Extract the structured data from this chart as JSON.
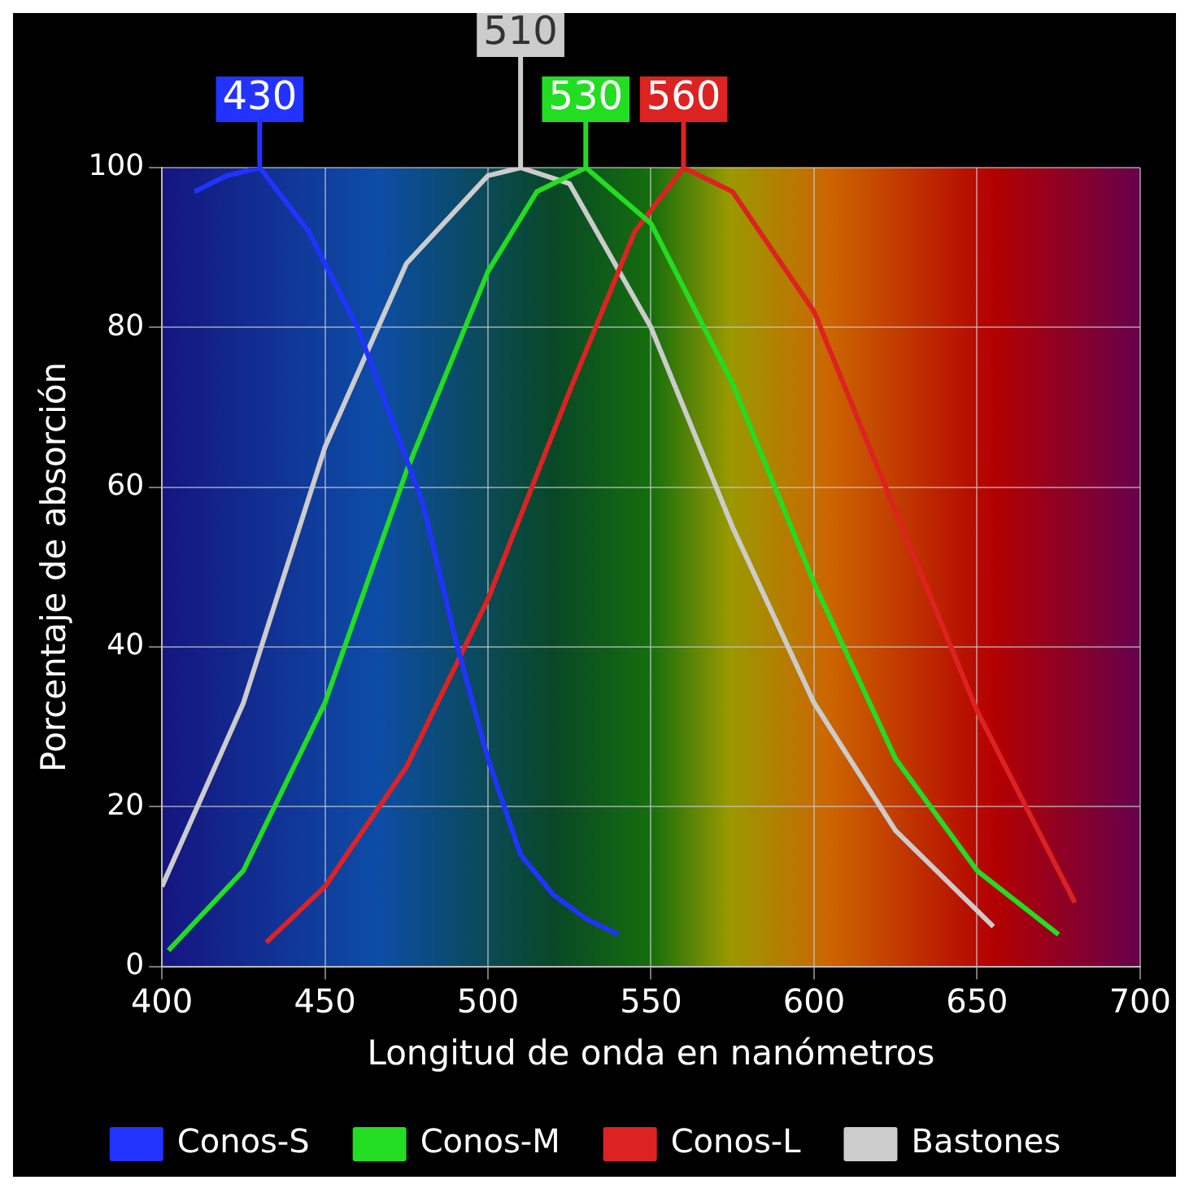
{
  "chart_data": {
    "type": "line",
    "xlabel": "Longitud de onda en nanómetros",
    "ylabel": "Porcentaje de absorción",
    "xlim": [
      400,
      700
    ],
    "xticks": [
      400,
      450,
      500,
      550,
      600,
      650,
      700
    ],
    "ylim": [
      0,
      100
    ],
    "yticks": [
      0,
      20,
      40,
      60,
      80,
      100
    ],
    "grid": true,
    "legend": "bottom",
    "marker": "none",
    "line_style": "solid",
    "series": [
      {
        "name": "Conos-S",
        "color": "#2233ff",
        "x": [
          410,
          420,
          430,
          445,
          460,
          470,
          480,
          490,
          500,
          510,
          520,
          530,
          540
        ],
        "values": [
          97,
          99,
          100,
          92,
          80,
          69,
          58,
          41,
          26,
          14,
          9,
          6,
          4
        ]
      },
      {
        "name": "Conos-M",
        "color": "#22dd22",
        "x": [
          402,
          425,
          450,
          475,
          500,
          515,
          530,
          550,
          575,
          600,
          625,
          650,
          675
        ],
        "values": [
          2,
          12,
          33,
          62,
          87,
          97,
          100,
          93,
          73,
          48,
          26,
          12,
          4
        ]
      },
      {
        "name": "Conos-L",
        "color": "#dd2222",
        "x": [
          432,
          450,
          475,
          500,
          525,
          545,
          560,
          575,
          600,
          625,
          650,
          665,
          680
        ],
        "values": [
          3,
          10,
          25,
          46,
          72,
          92,
          100,
          97,
          82,
          57,
          32,
          20,
          8
        ]
      },
      {
        "name": "Bastones",
        "color": "#cccccc",
        "x": [
          400,
          425,
          450,
          475,
          500,
          510,
          525,
          550,
          575,
          600,
          625,
          650,
          655
        ],
        "values": [
          10,
          33,
          65,
          88,
          99,
          100,
          98,
          80,
          55,
          33,
          17,
          7,
          5
        ]
      }
    ],
    "annotations": [
      {
        "text": "430",
        "x": 430,
        "y": 100
      },
      {
        "text": "530",
        "x": 530,
        "y": 100
      },
      {
        "text": "560",
        "x": 560,
        "y": 100
      },
      {
        "text": "510",
        "x": 510,
        "y": 100
      }
    ]
  }
}
